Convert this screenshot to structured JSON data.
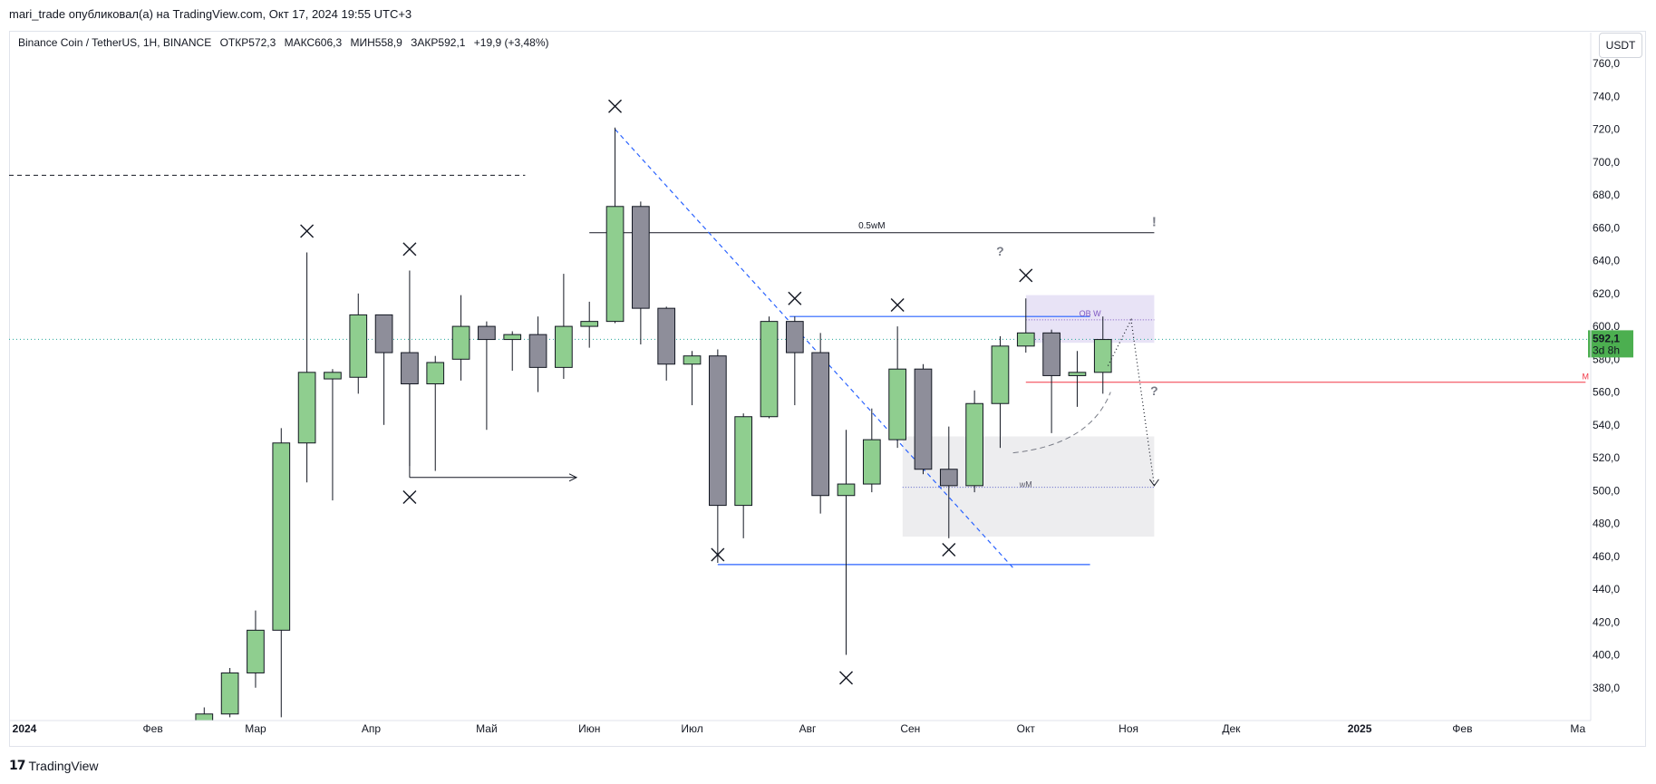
{
  "header": {
    "published": "mari_trade опубликовал(а) на TradingView.com, Окт 17, 2024 19:55 UTC+3"
  },
  "legend": {
    "symbol": "Binance Coin / TetherUS, 1H, BINANCE",
    "open": "ОТКР572,3",
    "high": "МАКС606,3",
    "low": "МИН558,9",
    "close": "ЗАКР592,1",
    "change": "+19,9 (+3,48%)"
  },
  "currency": "USDT",
  "price_tag": {
    "value": "592,1",
    "countdown": "3d 8h",
    "color": "#4caf50"
  },
  "footer": {
    "brand": "TradingView"
  },
  "colors": {
    "up": "#8fce8f",
    "down": "#8e8e9a",
    "wick": "#131722",
    "trendline": "#2962ff",
    "level_red": "#f23645"
  },
  "chart_data": {
    "type": "candlestick",
    "ylim": [
      360,
      770
    ],
    "ytick_labels": [
      "380,0",
      "400,0",
      "420,0",
      "440,0",
      "460,0",
      "480,0",
      "500,0",
      "520,0",
      "540,0",
      "560,0",
      "580,0",
      "600,0",
      "620,0",
      "640,0",
      "660,0",
      "680,0",
      "700,0",
      "720,0",
      "740,0",
      "760,0"
    ],
    "ytick_values": [
      380,
      400,
      420,
      440,
      460,
      480,
      500,
      520,
      540,
      560,
      580,
      600,
      620,
      640,
      660,
      680,
      700,
      720,
      740,
      760
    ],
    "x_labels": [
      "2024",
      "Фев",
      "Мар",
      "Апр",
      "Май",
      "Июн",
      "Июл",
      "Авг",
      "Сен",
      "Окт",
      "Ноя",
      "Дек",
      "2025",
      "Фев",
      "Ма"
    ],
    "x_label_index": [
      0,
      5,
      9,
      13.5,
      18,
      22,
      26,
      30.5,
      34.5,
      39,
      43,
      47,
      52,
      56,
      60.5
    ],
    "x_index_range": [
      -0.6,
      61
    ],
    "candles": [
      {
        "i": 7,
        "o": 360,
        "h": 368,
        "l": 360,
        "c": 364
      },
      {
        "i": 8,
        "o": 364,
        "h": 392,
        "l": 362,
        "c": 389
      },
      {
        "i": 9,
        "o": 389,
        "h": 427,
        "l": 380,
        "c": 415
      },
      {
        "i": 10,
        "o": 415,
        "h": 538,
        "l": 362,
        "c": 529
      },
      {
        "i": 11,
        "o": 529,
        "h": 645,
        "l": 505,
        "c": 572
      },
      {
        "i": 12,
        "o": 568,
        "h": 574,
        "l": 494,
        "c": 572
      },
      {
        "i": 13,
        "o": 569,
        "h": 620,
        "l": 559,
        "c": 607
      },
      {
        "i": 14,
        "o": 607,
        "h": 607,
        "l": 540,
        "c": 584
      },
      {
        "i": 15,
        "o": 584,
        "h": 634,
        "l": 515,
        "c": 565
      },
      {
        "i": 16,
        "o": 565,
        "h": 582,
        "l": 512,
        "c": 578
      },
      {
        "i": 17,
        "o": 580,
        "h": 619,
        "l": 567,
        "c": 600
      },
      {
        "i": 18,
        "o": 600,
        "h": 603,
        "l": 537,
        "c": 592
      },
      {
        "i": 19,
        "o": 592,
        "h": 597,
        "l": 573,
        "c": 595
      },
      {
        "i": 20,
        "o": 595,
        "h": 606,
        "l": 560,
        "c": 575
      },
      {
        "i": 21,
        "o": 575,
        "h": 632,
        "l": 568,
        "c": 600
      },
      {
        "i": 22,
        "o": 600,
        "h": 615,
        "l": 587,
        "c": 603
      },
      {
        "i": 23,
        "o": 603,
        "h": 721,
        "l": 602,
        "c": 673
      },
      {
        "i": 24,
        "o": 673,
        "h": 676,
        "l": 589,
        "c": 611
      },
      {
        "i": 25,
        "o": 611,
        "h": 612,
        "l": 567,
        "c": 577
      },
      {
        "i": 26,
        "o": 577,
        "h": 585,
        "l": 552,
        "c": 582
      },
      {
        "i": 27,
        "o": 582,
        "h": 586,
        "l": 456,
        "c": 491
      },
      {
        "i": 28,
        "o": 491,
        "h": 547,
        "l": 471,
        "c": 545
      },
      {
        "i": 29,
        "o": 545,
        "h": 606,
        "l": 544,
        "c": 603
      },
      {
        "i": 30,
        "o": 603,
        "h": 606,
        "l": 552,
        "c": 584
      },
      {
        "i": 31,
        "o": 584,
        "h": 596,
        "l": 486,
        "c": 497
      },
      {
        "i": 32,
        "o": 497,
        "h": 537,
        "l": 400,
        "c": 504
      },
      {
        "i": 33,
        "o": 504,
        "h": 550,
        "l": 499,
        "c": 531
      },
      {
        "i": 34,
        "o": 531,
        "h": 600,
        "l": 526,
        "c": 574
      },
      {
        "i": 35,
        "o": 574,
        "h": 577,
        "l": 510,
        "c": 513
      },
      {
        "i": 36,
        "o": 513,
        "h": 539,
        "l": 471,
        "c": 503
      },
      {
        "i": 37,
        "o": 503,
        "h": 561,
        "l": 499,
        "c": 553
      },
      {
        "i": 38,
        "o": 553,
        "h": 594,
        "l": 526,
        "c": 588
      },
      {
        "i": 39,
        "o": 588,
        "h": 617,
        "l": 584,
        "c": 596
      },
      {
        "i": 40,
        "o": 596,
        "h": 598,
        "l": 535,
        "c": 570
      },
      {
        "i": 41,
        "o": 570,
        "h": 585,
        "l": 551,
        "c": 572
      },
      {
        "i": 42,
        "o": 572,
        "h": 606,
        "l": 559,
        "c": 592
      }
    ],
    "markers": [
      {
        "i": 11,
        "v": 658
      },
      {
        "i": 15,
        "v": 647
      },
      {
        "i": 15,
        "v": 496
      },
      {
        "i": 23,
        "v": 734
      },
      {
        "i": 27,
        "v": 461
      },
      {
        "i": 30,
        "v": 617
      },
      {
        "i": 32,
        "v": 386
      },
      {
        "i": 34,
        "v": 613
      },
      {
        "i": 36,
        "v": 464
      },
      {
        "i": 39,
        "v": 631
      }
    ],
    "annotations": {
      "level_05wm": {
        "label": "0.5wM",
        "value": 657,
        "from": 22,
        "to": 44
      },
      "exclaim": {
        "label": "!",
        "value": 661,
        "i": 44
      },
      "question_1": {
        "label": "?",
        "value": 643,
        "i": 38
      },
      "question_2": {
        "label": "?",
        "value": 558,
        "i": 44
      },
      "ob_zone": {
        "label": "OB W",
        "low": 590,
        "high": 619,
        "from": 39,
        "to": 44
      },
      "wm_zone": {
        "label": "wM",
        "low": 472,
        "high": 533,
        "from": 34.2,
        "to": 44
      },
      "wm_line": {
        "value": 502
      },
      "level_red": {
        "label": "M",
        "value": 566,
        "from": 39,
        "to": 60.8
      },
      "level_blue_high": {
        "value": 606,
        "from": 29.8,
        "to": 41.5
      },
      "level_blue_low": {
        "value": 455,
        "from": 27,
        "to": 41.5
      },
      "arrow_line": {
        "value": 508,
        "from": 15,
        "to": 21.5
      },
      "dashed_black": {
        "value": 692,
        "from": -0.6,
        "to": 19.5
      },
      "trend_dashed": {
        "from": [
          23,
          720
        ],
        "to": [
          38.5,
          453
        ]
      },
      "current_price_line": {
        "value": 592.1
      }
    }
  }
}
